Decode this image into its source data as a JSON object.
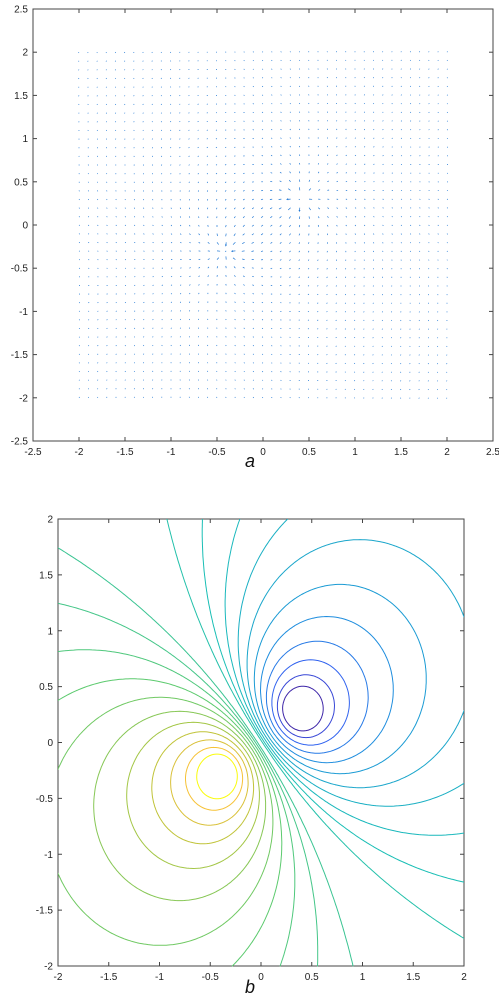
{
  "chart_data": [
    {
      "type": "quiver",
      "caption": "a",
      "xlim": [
        -2.5,
        2.5
      ],
      "ylim": [
        -2.5,
        2.5
      ],
      "xticks": [
        "-2.5",
        "-2",
        "-1.5",
        "-1",
        "-0.5",
        "0",
        "0.5",
        "1",
        "1.5",
        "2",
        "2.5"
      ],
      "yticks": [
        "2.5",
        "2",
        "1.5",
        "1",
        "0.5",
        "0",
        "-0.5",
        "-1",
        "-1.5",
        "-2",
        "-2.5"
      ],
      "field_domain": [
        -2,
        2
      ],
      "grid_spacing": 0.1,
      "sources": [
        {
          "x": 0.4,
          "y": 0.3,
          "strength": 1
        },
        {
          "x": -0.4,
          "y": -0.3,
          "strength": -1
        }
      ],
      "color": "#1f77d4"
    },
    {
      "type": "contour",
      "caption": "b",
      "xlim": [
        -2,
        2
      ],
      "ylim": [
        -2,
        2
      ],
      "xticks": [
        "-2",
        "-1.5",
        "-1",
        "-0.5",
        "0",
        "0.5",
        "1",
        "1.5",
        "2"
      ],
      "yticks": [
        "2",
        "1.5",
        "1",
        "0.5",
        "0",
        "-0.5",
        "-1",
        "-1.5",
        "-2"
      ],
      "sources": [
        {
          "x": 0.38,
          "y": 0.28,
          "strength": 1
        },
        {
          "x": -0.4,
          "y": -0.28,
          "strength": -1
        }
      ],
      "levels": [
        -1.6,
        -1.3,
        -1.05,
        -0.85,
        -0.68,
        -0.54,
        -0.42,
        -0.32,
        -0.23,
        -0.15,
        -0.08,
        0.08,
        0.15,
        0.23,
        0.32,
        0.42,
        0.54,
        0.68,
        0.85,
        1.05,
        1.3,
        1.6
      ],
      "colormap": "parula"
    }
  ]
}
